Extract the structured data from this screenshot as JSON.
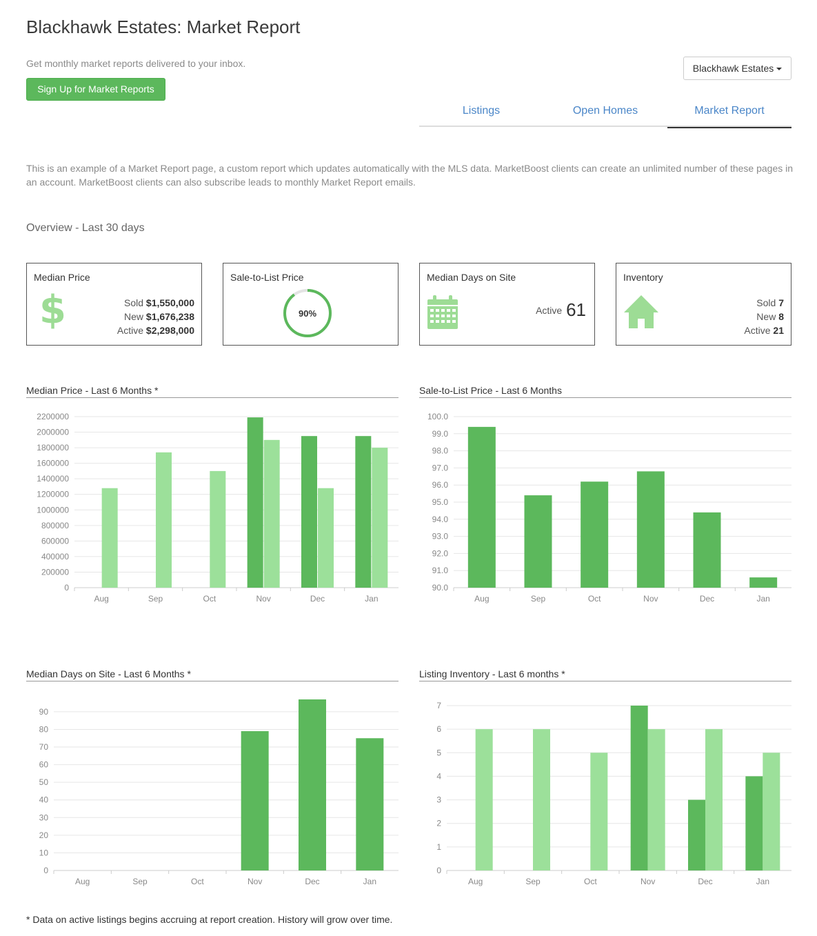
{
  "header": {
    "title": "Blackhawk Estates: Market Report",
    "signup_text": "Get monthly market reports delivered to your inbox.",
    "signup_button": "Sign Up for Market Reports",
    "area_dropdown": "Blackhawk Estates"
  },
  "tabs": [
    {
      "label": "Listings",
      "active": false
    },
    {
      "label": "Open Homes",
      "active": false
    },
    {
      "label": "Market Report",
      "active": true
    }
  ],
  "intro": "This is an example of a Market Report page, a custom report which updates automatically with the MLS data. MarketBoost clients can create an unlimited number of these pages in an account. MarketBoost clients can also subscribe leads to monthly Market Report emails.",
  "overview_title": "Overview - Last 30 days",
  "cards": {
    "median_price": {
      "title": "Median Price",
      "icon": "dollar-icon",
      "sold_label": "Sold",
      "sold_value": "$1,550,000",
      "new_label": "New",
      "new_value": "$1,676,238",
      "active_label": "Active",
      "active_value": "$2,298,000"
    },
    "sale_to_list": {
      "title": "Sale-to-List Price",
      "percent_label": "90%",
      "percent": 90
    },
    "days_on_site": {
      "title": "Median Days on Site",
      "icon": "calendar-icon",
      "active_label": "Active",
      "active_value": "61"
    },
    "inventory": {
      "title": "Inventory",
      "icon": "house-icon",
      "sold_label": "Sold",
      "sold_value": "7",
      "new_label": "New",
      "new_value": "8",
      "active_label": "Active",
      "active_value": "21"
    }
  },
  "colors": {
    "dark_green": "#5cb85c",
    "light_green": "#9ce09a",
    "icon_green": "#9ddc95",
    "tab_blue": "#4a86c8",
    "grid": "#e6e6e6",
    "axis_text": "#888888"
  },
  "footnote": "* Data on active listings begins accruing at report creation. History will grow over time.",
  "chart_data": [
    {
      "title": "Median Price - Last 6 Months *",
      "type": "bar",
      "categories": [
        "Aug",
        "Sep",
        "Oct",
        "Nov",
        "Dec",
        "Jan"
      ],
      "series": [
        {
          "color": "#5cb85c",
          "values": [
            0,
            0,
            0,
            2190000,
            1950000,
            1950000
          ]
        },
        {
          "color": "#9ce09a",
          "values": [
            1280000,
            1740000,
            1500000,
            1900000,
            1280000,
            1800000
          ]
        }
      ],
      "yticks": [
        "0",
        "200000",
        "400000",
        "600000",
        "800000",
        "1000000",
        "1200000",
        "1400000",
        "1600000",
        "1800000",
        "2000000",
        "2200000"
      ],
      "ylim": [
        0,
        2200000
      ],
      "grid": true
    },
    {
      "title": "Sale-to-List Price - Last 6 Months",
      "type": "bar",
      "categories": [
        "Aug",
        "Sep",
        "Oct",
        "Nov",
        "Dec",
        "Jan"
      ],
      "series": [
        {
          "color": "#5cb85c",
          "values": [
            99.4,
            95.4,
            96.2,
            96.8,
            94.4,
            90.6
          ]
        }
      ],
      "yticks": [
        "90.0",
        "91.0",
        "92.0",
        "93.0",
        "94.0",
        "95.0",
        "96.0",
        "97.0",
        "98.0",
        "99.0",
        "100.0"
      ],
      "ylim": [
        90,
        100
      ],
      "grid": true
    },
    {
      "title": "Median Days on Site - Last 6 Months *",
      "type": "bar",
      "categories": [
        "Aug",
        "Sep",
        "Oct",
        "Nov",
        "Dec",
        "Jan"
      ],
      "series": [
        {
          "color": "#5cb85c",
          "values": [
            0,
            0,
            0,
            79,
            97,
            75
          ]
        }
      ],
      "yticks": [
        "0",
        "10",
        "20",
        "30",
        "40",
        "50",
        "60",
        "70",
        "80",
        "90"
      ],
      "ylim": [
        0,
        97
      ],
      "grid": true
    },
    {
      "title": "Listing Inventory - Last 6 months *",
      "type": "bar",
      "categories": [
        "Aug",
        "Sep",
        "Oct",
        "Nov",
        "Dec",
        "Jan"
      ],
      "series": [
        {
          "color": "#5cb85c",
          "values": [
            0,
            0,
            0,
            7,
            3,
            4
          ]
        },
        {
          "color": "#9ce09a",
          "values": [
            6,
            6,
            5,
            6,
            6,
            5
          ]
        }
      ],
      "yticks": [
        "0",
        "1",
        "2",
        "3",
        "4",
        "5",
        "6",
        "7"
      ],
      "ylim": [
        0,
        7
      ],
      "grid": true
    }
  ]
}
